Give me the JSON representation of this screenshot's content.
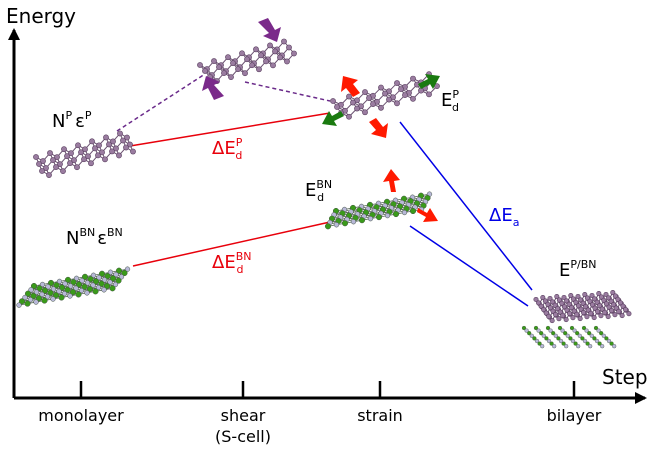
{
  "axes": {
    "y_label": "Energy",
    "x_label": "Step",
    "ticks": [
      {
        "line1": "monolayer",
        "line2": ""
      },
      {
        "line1": "shear",
        "line2": "(S-cell)"
      },
      {
        "line1": "strain",
        "line2": ""
      },
      {
        "line1": "bilayer",
        "line2": ""
      }
    ]
  },
  "labels": {
    "np_ep": {
      "N": "N",
      "N_sup": "P",
      "eps": "ε",
      "eps_sup": "P"
    },
    "nbn_ebn": {
      "N": "N",
      "N_sup": "BN",
      "eps": "ε",
      "eps_sup": "BN"
    },
    "delta_edp": {
      "prefix": "ΔE",
      "sup": "P",
      "sub": "d"
    },
    "delta_edbn": {
      "prefix": "ΔE",
      "sup": "BN",
      "sub": "d"
    },
    "edp": {
      "prefix": "E",
      "sup": "P",
      "sub": "d"
    },
    "edbn": {
      "prefix": "E",
      "sup": "BN",
      "sub": "d"
    },
    "delta_ea": {
      "prefix": "ΔE",
      "sub": "a"
    },
    "epbn": {
      "prefix": "E",
      "sup": "P/BN"
    }
  },
  "colors": {
    "axis": "#000000",
    "red": "#e8000b",
    "blue": "#0000e6",
    "purple_dash": "#6a2a8a",
    "phosphorene": "#9a7ca0",
    "bn_green": "#3a9a1a",
    "bn_light": "#b8b8d8",
    "arrow_red": "#ff1a00",
    "arrow_green": "#1a7a10",
    "arrow_purple": "#7a2a8a"
  }
}
